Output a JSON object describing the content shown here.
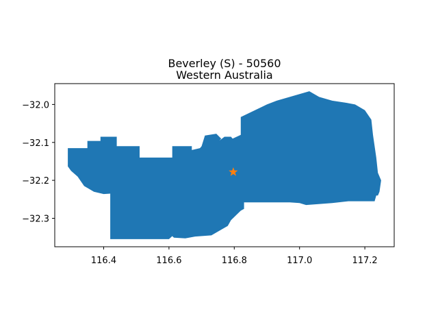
{
  "map": {
    "title_line1": "Beverley (S) - 50560",
    "title_line2": "Western Australia",
    "region_color": "#1f77b4",
    "marker_color": "#ff7f0e",
    "marker_shape": "star",
    "marker": {
      "lon": 116.797,
      "lat": -32.178
    },
    "x_ticks": [
      "116.4",
      "116.6",
      "116.8",
      "117.0",
      "117.2"
    ],
    "y_ticks": [
      "−32.0",
      "−32.1",
      "−32.2",
      "−32.3"
    ]
  },
  "chart_data": {
    "type": "scatter",
    "title": "Beverley (S) - 50560\nWestern Australia",
    "xlabel": "",
    "ylabel": "",
    "xlim": [
      116.25,
      117.29
    ],
    "ylim": [
      -32.375,
      -31.945
    ],
    "x_ticks": [
      116.4,
      116.6,
      116.8,
      117.0,
      117.2
    ],
    "y_ticks": [
      -32.0,
      -32.1,
      -32.2,
      -32.3
    ],
    "grid": false,
    "series": [
      {
        "values": [
          {
            "x": 116.797,
            "y": -32.178
          }
        ]
      }
    ],
    "region_outline": [
      [
        116.29,
        -32.163
      ],
      [
        116.29,
        -32.115
      ],
      [
        116.35,
        -32.115
      ],
      [
        116.35,
        -32.096
      ],
      [
        116.39,
        -32.096
      ],
      [
        116.39,
        -32.085
      ],
      [
        116.44,
        -32.085
      ],
      [
        116.44,
        -32.11
      ],
      [
        116.51,
        -32.11
      ],
      [
        116.51,
        -32.14
      ],
      [
        116.61,
        -32.14
      ],
      [
        116.61,
        -32.11
      ],
      [
        116.67,
        -32.11
      ],
      [
        116.67,
        -32.12
      ],
      [
        116.695,
        -32.115
      ],
      [
        116.7,
        -32.11
      ],
      [
        116.71,
        -32.082
      ],
      [
        116.745,
        -32.077
      ],
      [
        116.76,
        -32.09
      ],
      [
        116.755,
        -32.095
      ],
      [
        116.77,
        -32.085
      ],
      [
        116.79,
        -32.085
      ],
      [
        116.795,
        -32.09
      ],
      [
        116.82,
        -32.08
      ],
      [
        116.82,
        -32.033
      ],
      [
        116.9,
        -32.0
      ],
      [
        116.93,
        -31.99
      ],
      [
        116.97,
        -31.98
      ],
      [
        116.99,
        -31.975
      ],
      [
        117.03,
        -31.965
      ],
      [
        117.06,
        -31.98
      ],
      [
        117.1,
        -31.99
      ],
      [
        117.14,
        -31.995
      ],
      [
        117.17,
        -32.0
      ],
      [
        117.2,
        -32.015
      ],
      [
        117.22,
        -32.04
      ],
      [
        117.225,
        -32.08
      ],
      [
        117.235,
        -32.14
      ],
      [
        117.24,
        -32.18
      ],
      [
        117.25,
        -32.2
      ],
      [
        117.245,
        -32.23
      ],
      [
        117.24,
        -32.24
      ],
      [
        117.235,
        -32.24
      ],
      [
        117.23,
        -32.255
      ],
      [
        117.15,
        -32.255
      ],
      [
        117.1,
        -32.26
      ],
      [
        117.02,
        -32.265
      ],
      [
        117.0,
        -32.26
      ],
      [
        116.97,
        -32.258
      ],
      [
        116.83,
        -32.258
      ],
      [
        116.83,
        -32.275
      ],
      [
        116.82,
        -32.28
      ],
      [
        116.79,
        -32.305
      ],
      [
        116.78,
        -32.32
      ],
      [
        116.76,
        -32.33
      ],
      [
        116.73,
        -32.345
      ],
      [
        116.68,
        -32.348
      ],
      [
        116.65,
        -32.353
      ],
      [
        116.615,
        -32.351
      ],
      [
        116.61,
        -32.347
      ],
      [
        116.6,
        -32.355
      ],
      [
        116.42,
        -32.355
      ],
      [
        116.42,
        -32.235
      ],
      [
        116.4,
        -32.236
      ],
      [
        116.37,
        -32.23
      ],
      [
        116.34,
        -32.215
      ],
      [
        116.32,
        -32.19
      ],
      [
        116.3,
        -32.175
      ]
    ]
  }
}
